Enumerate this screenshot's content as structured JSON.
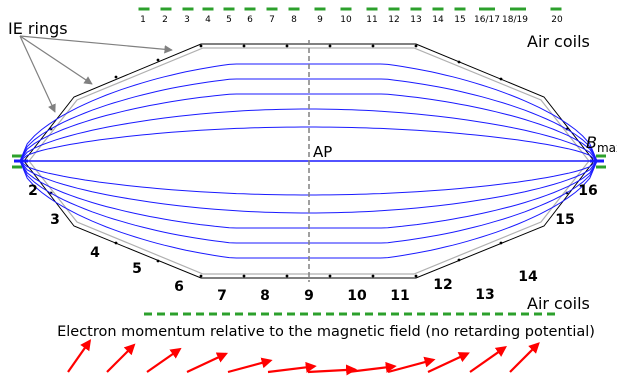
{
  "colors": {
    "field_lines": "#1a1aff",
    "coils": "#2ca02c",
    "arrows": "#ff0000",
    "electrode": "#000000",
    "electrode_inner": "#b0b0b0",
    "pointer": "#808080",
    "analyzing_plane": "#808080"
  },
  "labels": {
    "ie_rings": "IE rings",
    "air_coils_top": "Air coils",
    "air_coils_bottom": "Air coils",
    "ap": "AP",
    "bmax_symbol": "B",
    "bmax_subscript": "max",
    "caption": "Electron momentum relative to the magnetic field (no retarding potential)"
  },
  "top_coil_numbers": [
    "1",
    "2",
    "3",
    "4",
    "5",
    "6",
    "7",
    "8",
    "9",
    "10",
    "11",
    "12",
    "13",
    "14",
    "15",
    "16/17",
    "18/19",
    "20"
  ],
  "segment_numbers": {
    "left": [
      "2",
      "3",
      "4",
      "5",
      "6"
    ],
    "bottom": [
      "7",
      "8",
      "9",
      "10",
      "11"
    ],
    "right": [
      "12",
      "13",
      "14",
      "15",
      "16"
    ]
  },
  "momentum_arrow_angles_deg": [
    55,
    45,
    35,
    25,
    15,
    7,
    3,
    0,
    3,
    7,
    15,
    25,
    35,
    45
  ],
  "icons": {
    "field_line": "field-line-icon",
    "coil": "coil-segment-icon",
    "arrow": "momentum-arrow-icon"
  }
}
